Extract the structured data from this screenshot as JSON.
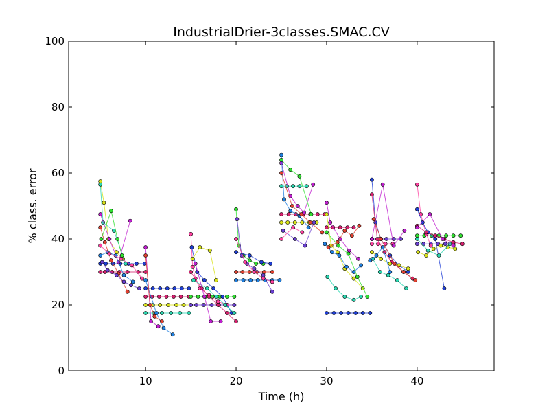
{
  "chart_data": {
    "type": "scatter",
    "title": "IndustrialDrier-3classes.SMAC.CV",
    "xlabel": "Time (h)",
    "ylabel": "% class. error",
    "xlim": [
      1.5,
      48.5
    ],
    "ylim": [
      0,
      100
    ],
    "xticks": [
      10,
      20,
      30,
      40
    ],
    "yticks": [
      0,
      20,
      40,
      60,
      80,
      100
    ],
    "grid": false,
    "legend": "none",
    "colors": [
      "#1f3fd6",
      "#d6206e",
      "#d8e21a",
      "#2ad6b0",
      "#c01fd0",
      "#2080e0",
      "#e04030",
      "#30e030",
      "#6a3fd0",
      "#ff40a0"
    ],
    "series": [
      {
        "x": [
          5.0,
          5.6,
          6.4,
          7.2,
          8.1,
          9.0,
          9.9
        ],
        "y": [
          32.5,
          32.5,
          32.5,
          32.5,
          32.5,
          32.5,
          32.5
        ]
      },
      {
        "x": [
          5.0,
          5.5,
          6.3,
          7.1,
          8.0,
          9.2,
          10.0
        ],
        "y": [
          30.0,
          30.0,
          30.0,
          30.0,
          30.0,
          30.0,
          30.0
        ]
      },
      {
        "x": [
          5.0,
          5.4,
          5.9,
          6.8,
          7.5
        ],
        "y": [
          57.5,
          51.0,
          40.0,
          36.0,
          34.0
        ]
      },
      {
        "x": [
          5.0,
          5.3,
          6.5,
          7.8
        ],
        "y": [
          56.5,
          45.0,
          42.5,
          32.5
        ]
      },
      {
        "x": [
          5.0,
          6.0,
          7.0,
          8.3
        ],
        "y": [
          47.5,
          40.0,
          33.0,
          45.5
        ]
      },
      {
        "x": [
          5.0,
          5.8,
          6.7,
          7.6,
          8.6
        ],
        "y": [
          35.0,
          36.0,
          35.0,
          29.0,
          27.0
        ]
      },
      {
        "x": [
          5.0,
          5.5,
          6.2,
          7.0,
          8.0
        ],
        "y": [
          43.5,
          39.0,
          33.5,
          29.5,
          24.0
        ]
      },
      {
        "x": [
          5.1,
          6.2,
          6.9,
          7.4
        ],
        "y": [
          40.0,
          48.5,
          40.0,
          35.0
        ]
      },
      {
        "x": [
          5.2,
          5.8,
          6.8,
          7.6,
          8.4,
          9.3
        ],
        "y": [
          33.0,
          30.5,
          29.0,
          27.0,
          26.0,
          25.0
        ]
      },
      {
        "x": [
          5.0,
          6.0,
          7.3,
          8.5,
          9.6
        ],
        "y": [
          38.0,
          35.5,
          34.0,
          32.0,
          28.0
        ]
      },
      {
        "x": [
          10.0,
          10.8,
          11.6,
          12.4,
          13.2,
          14.0,
          14.8
        ],
        "y": [
          25.0,
          25.0,
          25.0,
          25.0,
          25.0,
          25.0,
          25.0
        ]
      },
      {
        "x": [
          10.0,
          10.7,
          11.5,
          12.3,
          13.1,
          13.9,
          14.8
        ],
        "y": [
          22.5,
          22.5,
          22.5,
          22.5,
          22.5,
          22.5,
          22.5
        ]
      },
      {
        "x": [
          10.0,
          10.8,
          11.6,
          12.5,
          13.4,
          14.2,
          15.0
        ],
        "y": [
          20.0,
          20.0,
          20.0,
          20.0,
          20.0,
          20.0,
          20.0
        ]
      },
      {
        "x": [
          10.0,
          10.9,
          11.8,
          12.8,
          13.8,
          14.8
        ],
        "y": [
          17.5,
          17.5,
          17.5,
          17.5,
          17.5,
          17.5
        ]
      },
      {
        "x": [
          10.0,
          10.6,
          11.4
        ],
        "y": [
          37.5,
          15.0,
          13.5
        ]
      },
      {
        "x": [
          10.0,
          11.2,
          12.0,
          13.0
        ],
        "y": [
          27.5,
          17.5,
          13.0,
          11.0
        ]
      },
      {
        "x": [
          10.0,
          10.5,
          11.0,
          11.8
        ],
        "y": [
          35.0,
          20.0,
          16.5,
          15.0
        ]
      },
      {
        "x": [
          15.0,
          15.8,
          16.6,
          17.4,
          18.2,
          19.0,
          19.8
        ],
        "y": [
          22.5,
          22.5,
          22.5,
          22.5,
          22.5,
          22.5,
          22.5
        ]
      },
      {
        "x": [
          15.0,
          15.6,
          16.4,
          17.3,
          18.1,
          19.0,
          19.8
        ],
        "y": [
          20.0,
          20.0,
          20.0,
          20.0,
          20.0,
          20.0,
          20.0
        ]
      },
      {
        "x": [
          15.0,
          15.2,
          15.5,
          16.0,
          17.0,
          18.0,
          19.0
        ],
        "y": [
          41.5,
          31.5,
          28.0,
          25.0,
          23.0,
          21.0,
          20.0
        ]
      },
      {
        "x": [
          15.1,
          15.7,
          16.5,
          17.5,
          18.5,
          19.5
        ],
        "y": [
          37.5,
          30.0,
          27.5,
          25.0,
          22.5,
          17.5
        ]
      },
      {
        "x": [
          15.0,
          16.2,
          17.0,
          18.0,
          19.0,
          20.0
        ],
        "y": [
          30.0,
          25.0,
          22.5,
          20.0,
          17.5,
          15.0
        ]
      },
      {
        "x": [
          15.2,
          16.0,
          17.1,
          17.8
        ],
        "y": [
          34.0,
          37.5,
          36.5,
          27.5
        ]
      },
      {
        "x": [
          15.3,
          16.8,
          17.8,
          18.8,
          19.8
        ],
        "y": [
          27.5,
          25.0,
          22.5,
          20.0,
          17.5
        ]
      },
      {
        "x": [
          15.5,
          16.5,
          17.2,
          18.3
        ],
        "y": [
          32.5,
          22.5,
          15.0,
          15.0
        ]
      },
      {
        "x": [
          20.0,
          20.8,
          21.6,
          22.4,
          23.2,
          24.0,
          24.8
        ],
        "y": [
          27.5,
          27.5,
          27.5,
          27.5,
          27.5,
          27.5,
          27.5
        ]
      },
      {
        "x": [
          20.0,
          20.7,
          21.5,
          22.3,
          23.1,
          24.0
        ],
        "y": [
          30.0,
          30.0,
          30.0,
          30.0,
          30.0,
          30.0
        ]
      },
      {
        "x": [
          20.0,
          20.3,
          20.8,
          21.5,
          22.2,
          23.0
        ],
        "y": [
          49.0,
          38.0,
          35.0,
          33.5,
          32.5,
          32.5
        ]
      },
      {
        "x": [
          20.1,
          20.6,
          21.2,
          22.0,
          23.0,
          24.0
        ],
        "y": [
          46.0,
          35.0,
          32.5,
          31.0,
          29.0,
          24.0
        ]
      },
      {
        "x": [
          20.0,
          21.0,
          22.0,
          23.0,
          24.0
        ],
        "y": [
          40.0,
          33.0,
          30.0,
          28.0,
          27.0
        ]
      },
      {
        "x": [
          20.0,
          21.5,
          22.8,
          23.8
        ],
        "y": [
          36.0,
          35.0,
          33.0,
          32.5
        ]
      },
      {
        "x": [
          25.0,
          25.8,
          26.6,
          27.4,
          28.2,
          29.0,
          29.8
        ],
        "y": [
          47.5,
          47.5,
          47.5,
          47.5,
          47.5,
          47.5,
          47.5
        ]
      },
      {
        "x": [
          25.0,
          25.7,
          26.5,
          27.3,
          28.1,
          28.9
        ],
        "y": [
          45.0,
          45.0,
          45.0,
          45.0,
          45.0,
          45.0
        ]
      },
      {
        "x": [
          25.0,
          25.6,
          26.3,
          27.0,
          27.8
        ],
        "y": [
          56.0,
          56.0,
          56.0,
          56.0,
          56.0
        ]
      },
      {
        "x": [
          25.0,
          26.0,
          26.8,
          27.5,
          28.5
        ],
        "y": [
          63.0,
          53.0,
          50.0,
          48.0,
          56.5
        ]
      },
      {
        "x": [
          25.0,
          25.3,
          26.0,
          27.0,
          28.0
        ],
        "y": [
          65.5,
          52.0,
          48.5,
          47.0,
          43.5
        ]
      },
      {
        "x": [
          25.0,
          26.2,
          27.2,
          28.2,
          29.5
        ],
        "y": [
          60.0,
          50.0,
          47.5,
          45.0,
          42.0
        ]
      },
      {
        "x": [
          25.0,
          26.0,
          27.0,
          28.3
        ],
        "y": [
          64.0,
          61.0,
          59.0,
          47.5
        ]
      },
      {
        "x": [
          25.2,
          26.5,
          27.6,
          28.6
        ],
        "y": [
          42.5,
          40.0,
          38.0,
          45.0
        ]
      },
      {
        "x": [
          25.0,
          26.3,
          27.3
        ],
        "y": [
          40.0,
          43.5,
          42.0
        ]
      },
      {
        "x": [
          30.0,
          30.8,
          31.6,
          32.4,
          33.2,
          34.0,
          34.8
        ],
        "y": [
          17.5,
          17.5,
          17.5,
          17.5,
          17.5,
          17.5,
          17.5
        ]
      },
      {
        "x": [
          30.0,
          30.7,
          31.5,
          32.3,
          33.0
        ],
        "y": [
          43.5,
          43.5,
          43.5,
          43.5,
          43.5
        ]
      },
      {
        "x": [
          30.0,
          30.5,
          31.2,
          32.0,
          33.0,
          34.0
        ],
        "y": [
          47.5,
          38.0,
          36.0,
          31.0,
          28.0,
          25.0
        ]
      },
      {
        "x": [
          30.1,
          31.0,
          32.0,
          33.0,
          33.8
        ],
        "y": [
          28.5,
          25.0,
          22.5,
          21.5,
          22.5
        ]
      },
      {
        "x": [
          30.0,
          30.4,
          31.5,
          32.5,
          33.5
        ],
        "y": [
          51.0,
          45.0,
          40.0,
          36.5,
          34.0
        ]
      },
      {
        "x": [
          29.8,
          30.6,
          31.4,
          32.2,
          33.0,
          33.8
        ],
        "y": [
          38.5,
          36.0,
          35.0,
          31.5,
          30.0,
          32.0
        ]
      },
      {
        "x": [
          30.2,
          31.2,
          32.0,
          32.8,
          33.6
        ],
        "y": [
          37.5,
          39.0,
          42.5,
          41.0,
          44.0
        ]
      },
      {
        "x": [
          30.0,
          31.3,
          32.4,
          33.4,
          34.5
        ],
        "y": [
          42.0,
          38.0,
          35.5,
          28.5,
          22.5
        ]
      },
      {
        "x": [
          35.0,
          35.8,
          36.6,
          37.4,
          38.2
        ],
        "y": [
          40.0,
          40.0,
          40.0,
          40.0,
          40.0
        ]
      },
      {
        "x": [
          35.0,
          35.7,
          36.5,
          37.3
        ],
        "y": [
          38.5,
          38.5,
          38.5,
          38.5
        ]
      },
      {
        "x": [
          35.0,
          35.4,
          36.0,
          37.0,
          38.0,
          39.0
        ],
        "y": [
          58.0,
          45.0,
          40.0,
          35.0,
          32.0,
          30.0
        ]
      },
      {
        "x": [
          35.0,
          35.6,
          36.4,
          37.2,
          38.5,
          39.5
        ],
        "y": [
          53.5,
          40.0,
          36.0,
          33.0,
          30.0,
          28.0
        ]
      },
      {
        "x": [
          35.0,
          36.0,
          37.0,
          38.0,
          39.0
        ],
        "y": [
          36.0,
          34.0,
          32.5,
          32.0,
          31.0
        ]
      },
      {
        "x": [
          35.1,
          35.9,
          36.8,
          37.8,
          38.8
        ],
        "y": [
          34.0,
          30.0,
          29.0,
          27.5,
          25.0
        ]
      },
      {
        "x": [
          35.0,
          36.2,
          37.4,
          38.6
        ],
        "y": [
          40.0,
          56.5,
          38.0,
          42.5
        ]
      },
      {
        "x": [
          34.8,
          35.5,
          36.2,
          37.0
        ],
        "y": [
          33.5,
          35.0,
          37.5,
          30.0
        ]
      },
      {
        "x": [
          35.2,
          36.0,
          37.5,
          38.5,
          39.8
        ],
        "y": [
          46.0,
          40.0,
          32.5,
          30.0,
          27.5
        ]
      },
      {
        "x": [
          40.0,
          40.8,
          41.6,
          42.4,
          43.2,
          44.0,
          44.8
        ],
        "y": [
          41.0,
          41.0,
          41.0,
          41.0,
          41.0,
          41.0,
          41.0
        ]
      },
      {
        "x": [
          40.0,
          40.7,
          41.5,
          42.3,
          43.1,
          44.0
        ],
        "y": [
          38.5,
          38.5,
          38.5,
          38.5,
          38.5,
          38.5
        ]
      },
      {
        "x": [
          40.0,
          40.4,
          41.0,
          41.5
        ],
        "y": [
          56.5,
          47.5,
          41.5,
          38.0
        ]
      },
      {
        "x": [
          40.0,
          40.6,
          41.2,
          42.0,
          43.0
        ],
        "y": [
          49.0,
          45.0,
          42.0,
          40.0,
          25.0
        ]
      },
      {
        "x": [
          40.0,
          41.0,
          42.0,
          43.0,
          44.0,
          45.0
        ],
        "y": [
          44.0,
          42.0,
          41.0,
          40.0,
          39.0,
          38.5
        ]
      },
      {
        "x": [
          40.1,
          41.0,
          41.8,
          42.6,
          43.4,
          44.2
        ],
        "y": [
          36.0,
          35.0,
          37.0,
          38.0,
          37.5,
          37.0
        ]
      },
      {
        "x": [
          40.0,
          41.2,
          42.4,
          43.6
        ],
        "y": [
          40.0,
          36.5,
          35.0,
          38.5
        ]
      },
      {
        "x": [
          40.0,
          41.4,
          42.8,
          44.0
        ],
        "y": [
          43.5,
          47.5,
          40.0,
          38.0
        ]
      }
    ]
  }
}
